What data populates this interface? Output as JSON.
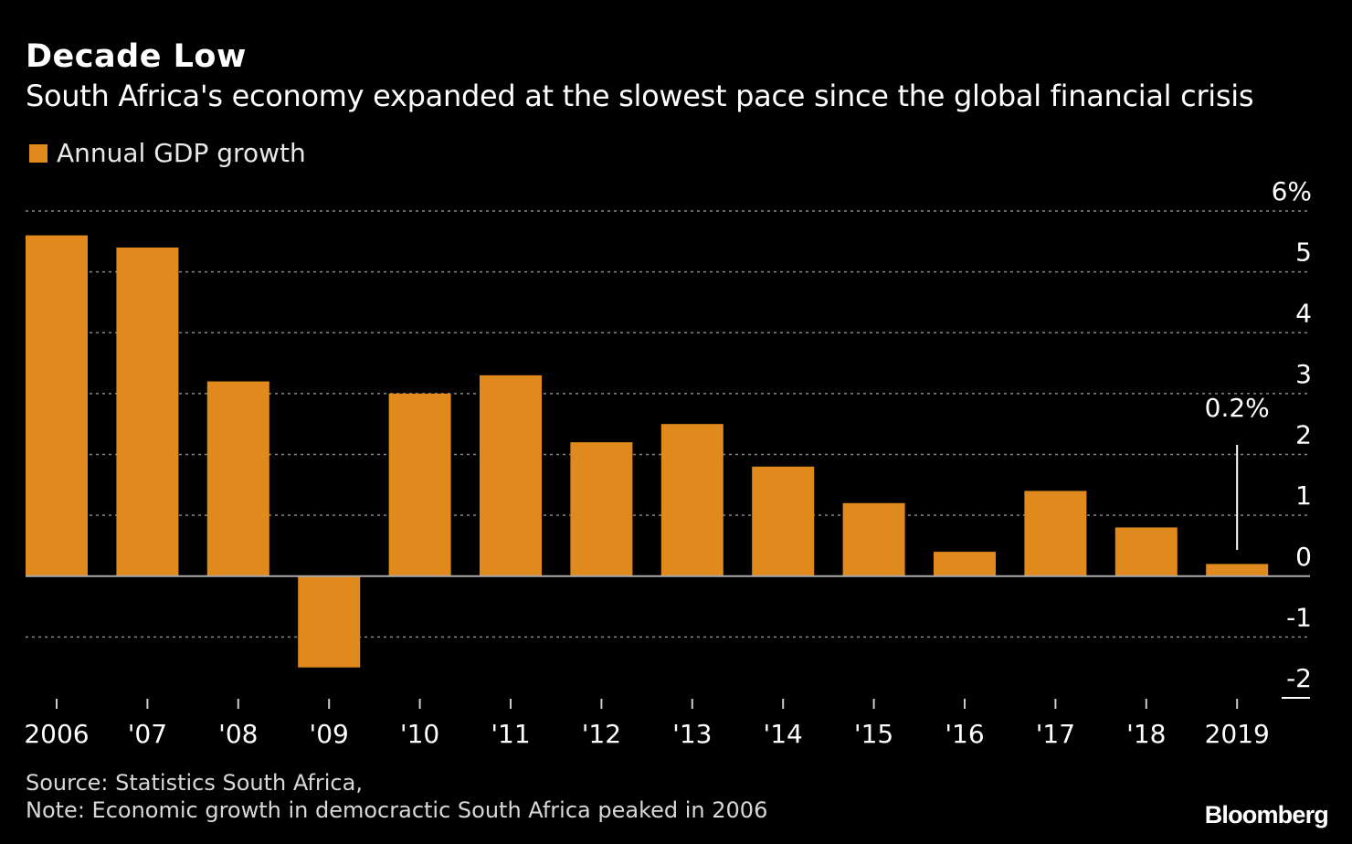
{
  "header": {
    "title": "Decade Low",
    "subtitle": "South Africa's economy expanded at the slowest pace since the global financial crisis"
  },
  "legend": {
    "label": "Annual GDP growth"
  },
  "colors": {
    "bar": "#E08A1E",
    "background": "#000000",
    "text": "#FFFFFF",
    "grid": "#888888"
  },
  "chart_data": {
    "type": "bar",
    "categories": [
      "2006",
      "'07",
      "'08",
      "'09",
      "'10",
      "'11",
      "'12",
      "'13",
      "'14",
      "'15",
      "'16",
      "'17",
      "'18",
      "2019"
    ],
    "series": [
      {
        "name": "Annual GDP growth",
        "values": [
          5.6,
          5.4,
          3.2,
          -1.5,
          3.0,
          3.3,
          2.2,
          2.5,
          1.8,
          1.2,
          0.4,
          1.4,
          0.8,
          0.2
        ]
      }
    ],
    "ylim": [
      -2,
      6
    ],
    "yticks": [
      {
        "value": 6,
        "label": "6%"
      },
      {
        "value": 5,
        "label": "5"
      },
      {
        "value": 4,
        "label": "4"
      },
      {
        "value": 3,
        "label": "3"
      },
      {
        "value": 2,
        "label": "2"
      },
      {
        "value": 1,
        "label": "1"
      },
      {
        "value": 0,
        "label": "0"
      },
      {
        "value": -1,
        "label": "-1"
      },
      {
        "value": -2,
        "label": "-2"
      }
    ],
    "y_axis_position": "right",
    "grid": true,
    "legend_position": "top-left",
    "annotations": [
      {
        "category": "2019",
        "text": "0.2%"
      }
    ]
  },
  "footer": {
    "source": "Source: Statistics South Africa,",
    "note": "Note: Economic growth in democractic South Africa peaked in 2006",
    "brand": "Bloomberg"
  }
}
